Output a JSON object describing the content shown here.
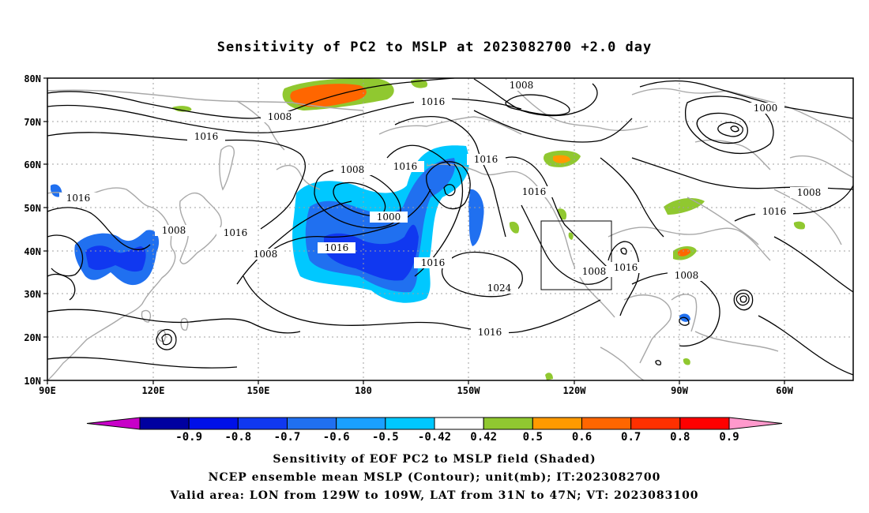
{
  "title": "Sensitivity of PC2 to MSLP at 2023082700 +2.0 day",
  "axes": {
    "lat_labels": [
      "80N",
      "70N",
      "60N",
      "50N",
      "40N",
      "30N",
      "20N",
      "10N"
    ],
    "lon_labels": [
      "90E",
      "120E",
      "150E",
      "180",
      "150W",
      "120W",
      "90W",
      "60W"
    ]
  },
  "contour_labels": [
    {
      "text": "1008",
      "name": "contour-label-1008-a"
    },
    {
      "text": "1008",
      "name": "contour-label-1008-b"
    },
    {
      "text": "1016",
      "name": "contour-label-1016-a"
    },
    {
      "text": "1016",
      "name": "contour-label-1016-b"
    },
    {
      "text": "1000",
      "name": "contour-label-1000-a"
    },
    {
      "text": "1016",
      "name": "contour-label-1016-c"
    },
    {
      "text": "1008",
      "name": "contour-label-1008-c"
    },
    {
      "text": "1016",
      "name": "contour-label-1016-d"
    },
    {
      "text": "1016",
      "name": "contour-label-1016-e"
    },
    {
      "text": "1016",
      "name": "contour-label-1016-f"
    },
    {
      "text": "1008",
      "name": "contour-label-1008-d"
    },
    {
      "text": "1016",
      "name": "contour-label-1016-g"
    },
    {
      "text": "1000",
      "name": "contour-label-1000-b"
    },
    {
      "text": "1008",
      "name": "contour-label-1008-e"
    },
    {
      "text": "1016",
      "name": "contour-label-1016-h"
    },
    {
      "text": "1016",
      "name": "contour-label-1016-i"
    },
    {
      "text": "1008",
      "name": "contour-label-1008-f"
    },
    {
      "text": "1016",
      "name": "contour-label-1016-j"
    },
    {
      "text": "1016",
      "name": "contour-label-1016-k"
    },
    {
      "text": "1016",
      "name": "contour-label-1016-l"
    },
    {
      "text": "1008",
      "name": "contour-label-1008-g"
    },
    {
      "text": "1016",
      "name": "contour-label-1016-m"
    },
    {
      "text": "1024",
      "name": "contour-label-1024"
    },
    {
      "text": "1016",
      "name": "contour-label-1016-n"
    },
    {
      "text": "1008",
      "name": "contour-label-1008-h"
    },
    {
      "text": "1008",
      "name": "contour-label-1008-i"
    },
    {
      "text": "1008",
      "name": "contour-label-1008-j"
    }
  ],
  "colorbar": {
    "colors": [
      "#c800c8",
      "#0000a0",
      "#0010e8",
      "#1038f0",
      "#2070f0",
      "#1aa0ff",
      "#00c8ff",
      "#ffffff",
      "#90c830",
      "#ff9a00",
      "#ff6600",
      "#ff3000",
      "#ff0000",
      "#ff99cc"
    ],
    "labels": [
      "-0.9",
      "-0.8",
      "-0.7",
      "-0.6",
      "-0.5",
      "-0.42",
      "0.42",
      "0.5",
      "0.6",
      "0.7",
      "0.8",
      "0.9"
    ]
  },
  "captions": {
    "line1": "Sensitivity of EOF PC2 to MSLP field (Shaded)",
    "line2": "NCEP ensemble mean MSLP (Contour); unit(mb); IT:2023082700",
    "line3": "Valid area: LON from 129W to 109W, LAT from 31N to 47N; VT: 2023083100"
  }
}
